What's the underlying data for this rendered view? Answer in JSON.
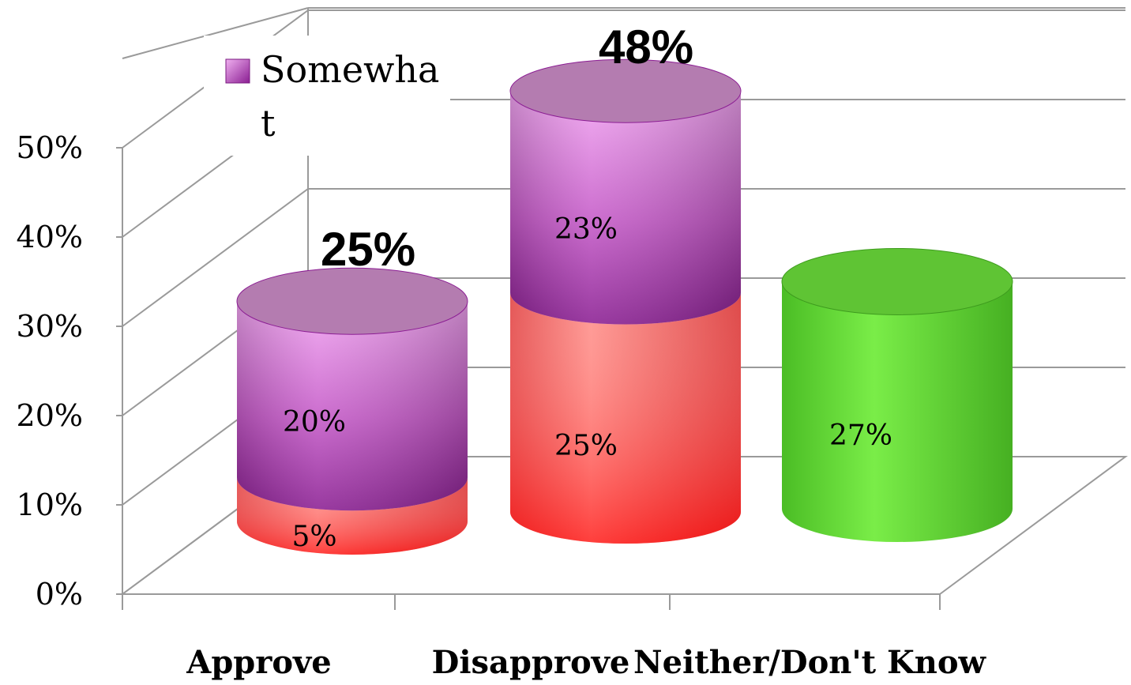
{
  "chart_data": {
    "type": "bar",
    "stacked": true,
    "style": "3d-cylinder",
    "categories": [
      "Approve",
      "Disapprove",
      "Neither/Don't Know"
    ],
    "series": [
      {
        "key": "strong",
        "values": [
          5,
          25,
          null
        ],
        "color": "#ff2a2a"
      },
      {
        "name": "Somewhat",
        "values": [
          20,
          23,
          null
        ],
        "color": "#b040b8"
      },
      {
        "key": "neither",
        "values": [
          null,
          null,
          27
        ],
        "color": "#5ed62e"
      }
    ],
    "segment_labels": [
      [
        "5%",
        "20%",
        null
      ],
      [
        "25%",
        "23%",
        null
      ],
      [
        null,
        null,
        "27%"
      ]
    ],
    "totals": [
      "25%",
      "48%",
      null
    ],
    "ylim": [
      0,
      50
    ],
    "yticks": [
      "0%",
      "10%",
      "20%",
      "30%",
      "40%",
      "50%"
    ],
    "grid": true,
    "legend": {
      "position": "top-left",
      "entries": [
        "Somewhat"
      ]
    }
  }
}
